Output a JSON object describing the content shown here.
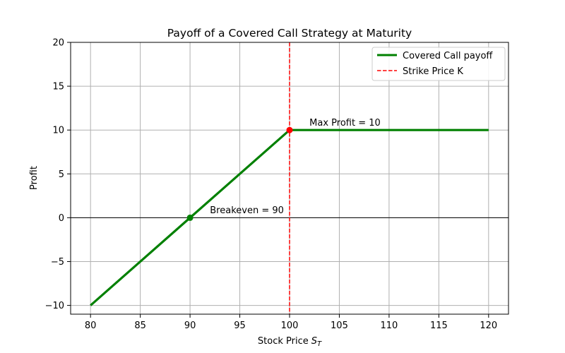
{
  "chart_data": {
    "type": "line",
    "title": "Payoff of a Covered Call Strategy at Maturity",
    "xlabel": "Stock Price",
    "xlabel_sub": "T",
    "ylabel": "Profit",
    "xlim": [
      78,
      122
    ],
    "ylim": [
      -11,
      20
    ],
    "xticks": [
      80,
      85,
      90,
      95,
      100,
      105,
      110,
      115,
      120
    ],
    "yticks": [
      -10,
      -5,
      0,
      5,
      10,
      15,
      20
    ],
    "ytick_labels": [
      "−10",
      "−5",
      "0",
      "5",
      "10",
      "15",
      "20"
    ],
    "grid": true,
    "legend_position": "top-right",
    "series": [
      {
        "name": "Covered Call payoff",
        "color": "#008000",
        "style": "solid",
        "x": [
          80,
          100,
          120
        ],
        "y": [
          -10,
          10,
          10
        ]
      }
    ],
    "vlines": [
      {
        "name": "Strike Price K",
        "x": 100,
        "color": "#ff0000",
        "style": "dashed"
      }
    ],
    "hlines": [
      {
        "y": 0,
        "color": "#000000"
      }
    ],
    "points": [
      {
        "x": 90,
        "y": 0,
        "color": "#008000"
      },
      {
        "x": 100,
        "y": 10,
        "color": "#ff0000"
      }
    ],
    "annotations": [
      {
        "text": "Breakeven = 90",
        "x": 92,
        "y": 0.5
      },
      {
        "text": "Max Profit = 10",
        "x": 102,
        "y": 10.5
      }
    ]
  }
}
